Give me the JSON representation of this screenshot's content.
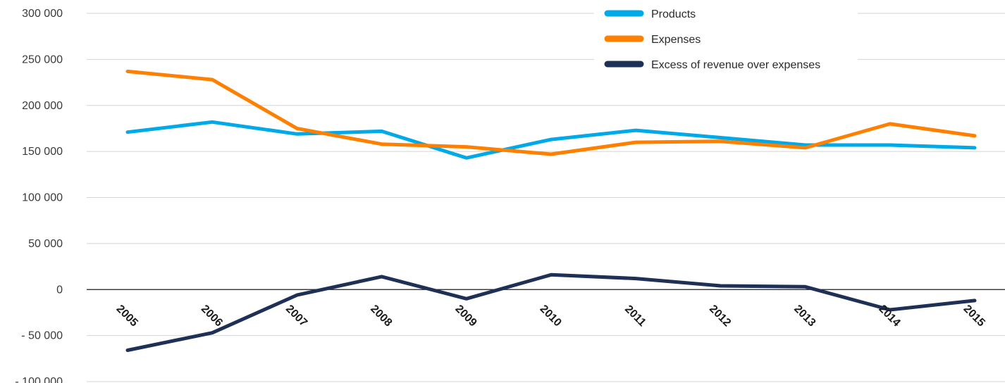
{
  "chart_data": {
    "type": "line",
    "title": "",
    "xlabel": "",
    "ylabel": "",
    "ylim": [
      -100000,
      300000
    ],
    "yticks": [
      300000,
      250000,
      200000,
      150000,
      100000,
      50000,
      0,
      -50000,
      -100000
    ],
    "ytick_labels": [
      "300 000",
      "250 000",
      "200 000",
      "150 000",
      "100 000",
      "50 000",
      "0",
      "- 50 000",
      "- 100 000"
    ],
    "x": [
      "2005",
      "2006",
      "2007",
      "2008",
      "2009",
      "2010",
      "2011",
      "2012",
      "2013",
      "2014",
      "2015"
    ],
    "grid": true,
    "legend_position": "top-right",
    "series": [
      {
        "name": "Products",
        "color": "#00A9E8",
        "values": [
          171000,
          182000,
          169000,
          172000,
          143000,
          163000,
          173000,
          165000,
          157000,
          157000,
          154000
        ]
      },
      {
        "name": "Expenses",
        "color": "#FF8000",
        "values": [
          237000,
          228000,
          175000,
          158000,
          155000,
          147000,
          160000,
          161000,
          154000,
          180000,
          167000
        ]
      },
      {
        "name": "Excess of revenue over expenses",
        "color": "#1E3056",
        "values": [
          -66000,
          -47000,
          -6000,
          14000,
          -10000,
          16000,
          12000,
          4000,
          3000,
          -22000,
          -12000
        ]
      }
    ]
  }
}
